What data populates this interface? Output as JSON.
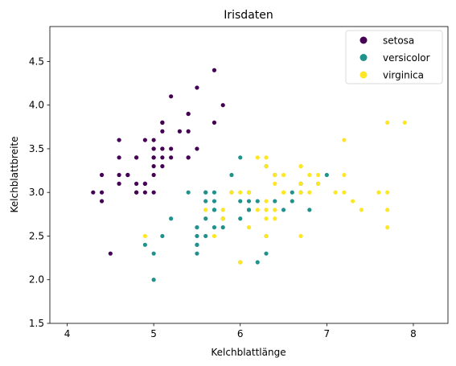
{
  "chart_data": {
    "type": "scatter",
    "title": "Irisdaten",
    "xlabel": "Kelchblattlänge",
    "ylabel": "Kelchblattbreite",
    "xlim": [
      3.8,
      8.4
    ],
    "ylim": [
      1.5,
      4.9
    ],
    "xticks": [
      "4",
      "5",
      "6",
      "7",
      "8"
    ],
    "yticks": [
      "1.5",
      "2.0",
      "2.5",
      "3.0",
      "3.5",
      "4.0",
      "4.5"
    ],
    "grid": false,
    "legend_position": "top-right",
    "series": [
      {
        "name": "setosa",
        "color": "#440154",
        "x": [
          5.1,
          4.9,
          4.7,
          4.6,
          5.0,
          5.4,
          4.6,
          5.0,
          4.4,
          4.9,
          5.4,
          4.8,
          4.8,
          4.3,
          5.8,
          5.7,
          5.4,
          5.1,
          5.7,
          5.1,
          5.4,
          5.1,
          4.6,
          5.1,
          4.8,
          5.0,
          5.0,
          5.2,
          5.2,
          4.7,
          4.8,
          5.4,
          5.2,
          5.5,
          4.9,
          5.0,
          5.5,
          4.9,
          4.4,
          5.1,
          5.0,
          4.5,
          4.4,
          5.0,
          5.1,
          4.8,
          5.1,
          4.6,
          5.3,
          5.0
        ],
        "y": [
          3.5,
          3.0,
          3.2,
          3.1,
          3.6,
          3.9,
          3.4,
          3.4,
          2.9,
          3.1,
          3.7,
          3.4,
          3.0,
          3.0,
          4.0,
          4.4,
          3.9,
          3.5,
          3.8,
          3.8,
          3.4,
          3.7,
          3.6,
          3.3,
          3.4,
          3.0,
          3.4,
          3.5,
          3.4,
          3.2,
          3.1,
          3.4,
          4.1,
          4.2,
          3.1,
          3.2,
          3.5,
          3.6,
          3.0,
          3.4,
          3.5,
          2.3,
          3.2,
          3.5,
          3.8,
          3.0,
          3.8,
          3.2,
          3.7,
          3.3
        ]
      },
      {
        "name": "versicolor",
        "color": "#21918c",
        "x": [
          7.0,
          6.4,
          6.9,
          5.5,
          6.5,
          5.7,
          6.3,
          4.9,
          6.6,
          5.2,
          5.0,
          5.9,
          6.0,
          6.1,
          5.6,
          6.7,
          5.6,
          5.8,
          6.2,
          5.6,
          5.9,
          6.1,
          6.3,
          6.1,
          6.4,
          6.6,
          6.8,
          6.7,
          6.0,
          5.7,
          5.5,
          5.5,
          5.8,
          6.0,
          5.4,
          6.0,
          6.7,
          6.3,
          5.6,
          5.5,
          5.5,
          6.1,
          5.8,
          5.0,
          5.6,
          5.7,
          5.7,
          6.2,
          5.1,
          5.7
        ],
        "y": [
          3.2,
          3.2,
          3.1,
          2.3,
          2.8,
          2.8,
          3.3,
          2.4,
          2.9,
          2.7,
          2.0,
          3.0,
          2.2,
          2.9,
          2.9,
          3.1,
          3.0,
          2.7,
          2.2,
          2.5,
          3.2,
          2.8,
          2.5,
          2.8,
          2.9,
          3.0,
          2.8,
          3.0,
          2.9,
          2.6,
          2.4,
          2.4,
          2.7,
          2.7,
          3.0,
          3.4,
          3.1,
          2.3,
          3.0,
          2.5,
          2.6,
          3.0,
          2.6,
          2.3,
          2.7,
          3.0,
          2.9,
          2.9,
          2.5,
          2.8
        ]
      },
      {
        "name": "virginica",
        "color": "#fde725",
        "x": [
          6.3,
          5.8,
          7.1,
          6.3,
          6.5,
          7.6,
          4.9,
          7.3,
          6.7,
          7.2,
          6.5,
          6.4,
          6.8,
          5.7,
          5.8,
          6.4,
          6.5,
          7.7,
          7.7,
          6.0,
          6.9,
          5.6,
          7.7,
          6.3,
          6.7,
          7.2,
          6.2,
          6.1,
          6.4,
          7.2,
          7.4,
          7.9,
          6.4,
          6.3,
          6.1,
          7.7,
          6.3,
          6.4,
          6.0,
          6.9,
          6.7,
          6.9,
          5.8,
          6.8,
          6.7,
          6.7,
          6.3,
          6.5,
          6.2,
          5.9
        ],
        "y": [
          3.3,
          2.7,
          3.0,
          2.9,
          3.0,
          3.0,
          2.5,
          2.9,
          2.5,
          3.6,
          3.2,
          2.7,
          3.0,
          2.5,
          2.8,
          3.2,
          3.0,
          3.8,
          2.6,
          2.2,
          3.2,
          2.8,
          2.8,
          2.7,
          3.3,
          3.2,
          2.8,
          3.0,
          2.8,
          3.0,
          2.8,
          3.8,
          2.8,
          2.8,
          2.6,
          3.0,
          3.4,
          3.1,
          3.0,
          3.1,
          3.1,
          3.1,
          2.7,
          3.2,
          3.3,
          3.0,
          2.5,
          3.0,
          3.4,
          3.0
        ]
      }
    ]
  }
}
